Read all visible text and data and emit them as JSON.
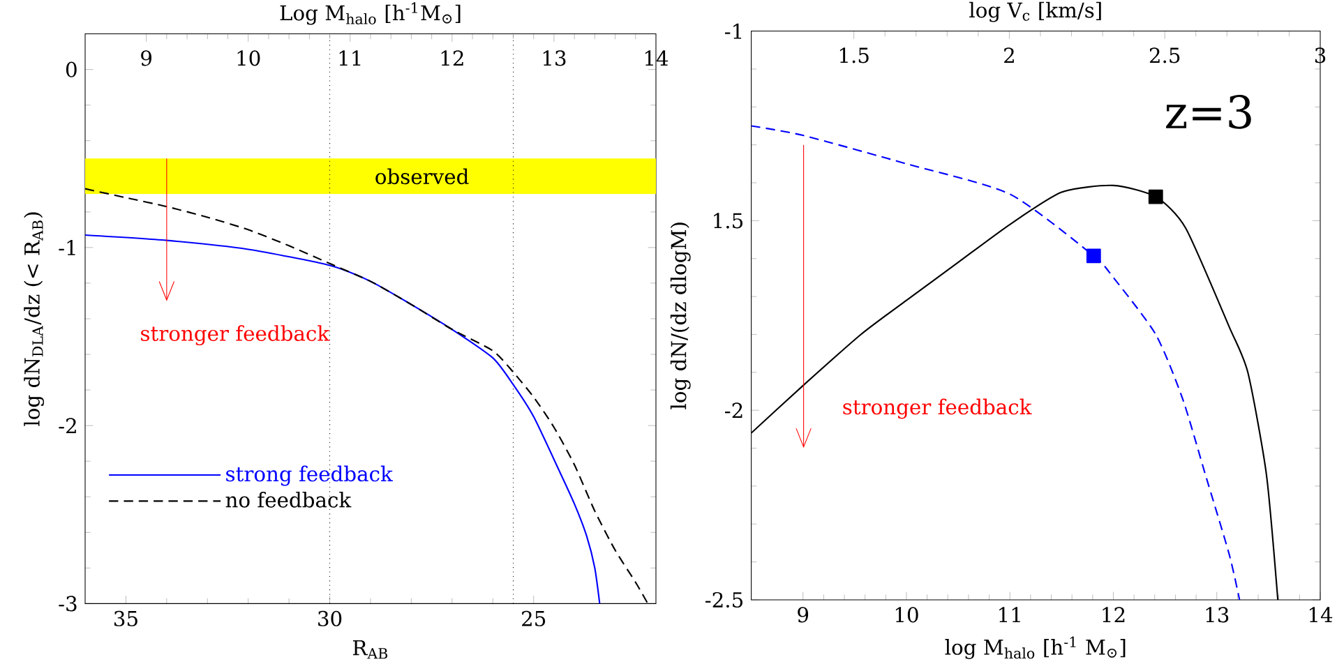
{
  "chart_data": [
    {
      "type": "line",
      "xlabel": "R$_{AB}$",
      "ylabel": "log dN$_{DLA}$/dz (< R$_{AB}$)",
      "x2label": "Log M$_{halo}$ [h$^{-1}$M$_{⊙}$]",
      "xlim": [
        36,
        22
      ],
      "xticks": [
        35,
        30,
        25
      ],
      "ylim": [
        -3,
        0.2
      ],
      "yticks": [
        0,
        -1,
        -2,
        -3
      ],
      "x2lim": [
        8.4,
        14
      ],
      "x2ticks": [
        9,
        10,
        11,
        12,
        13,
        14
      ],
      "legend": "bottom left",
      "series": [
        {
          "name": "strong feedback",
          "color": "#0000ff",
          "line_style": "solid",
          "x": [
            36,
            34,
            32,
            30,
            29,
            28,
            27,
            26,
            25.5,
            25,
            24.38,
            24,
            23.7,
            23.5,
            23.38
          ],
          "values": [
            -0.93,
            -0.96,
            -1.01,
            -1.1,
            -1.19,
            -1.32,
            -1.46,
            -1.62,
            -1.77,
            -1.95,
            -2.25,
            -2.44,
            -2.62,
            -2.8,
            -3.0
          ]
        },
        {
          "name": "no feedback",
          "color": "#000000",
          "line_style": "dashed",
          "x": [
            36,
            35,
            34,
            33,
            32,
            31,
            30,
            29,
            28,
            27,
            26,
            25.5,
            25,
            24.5,
            24,
            23.5,
            23,
            22.5,
            22.2
          ],
          "values": [
            -0.67,
            -0.72,
            -0.77,
            -0.83,
            -0.9,
            -0.99,
            -1.09,
            -1.19,
            -1.32,
            -1.46,
            -1.58,
            -1.7,
            -1.84,
            -2.01,
            -2.22,
            -2.48,
            -2.7,
            -2.88,
            -3.0
          ]
        }
      ],
      "bands": [
        {
          "axis": "y",
          "from": -0.7,
          "to": -0.5,
          "label": "observed",
          "color": "#ffff00"
        }
      ],
      "ref_lines": [
        {
          "axis": "x",
          "value": 30,
          "color": "#000000",
          "line_style": "dotted"
        },
        {
          "axis": "x",
          "value": 25.5,
          "color": "#000000",
          "line_style": "dotted"
        }
      ],
      "annotations": [
        {
          "text": "stronger feedback",
          "x": 34,
          "y": -0.5
        }
      ]
    },
    {
      "type": "line",
      "xlabel": "log M$_{halo}$ [h$^{-1}$ M$_{⊙}$]",
      "ylabel": "log dN/(dz dlogM)",
      "x2label": "log V$_{c}$ [km/s]",
      "xlim": [
        8.5,
        14
      ],
      "xticks": [
        9,
        10,
        11,
        12,
        13,
        14
      ],
      "ylim": [
        -2.5,
        -1
      ],
      "yticks": [
        -1,
        {
          "value": -1.5,
          "label": "1.5"
        },
        -2,
        -2.5
      ],
      "x2lim": [
        1.17,
        3
      ],
      "x2ticks": [
        1.5,
        2,
        2.5,
        3
      ],
      "series": [
        {
          "color": "#0000ff",
          "line_style": "dashed",
          "x": [
            8.5,
            9,
            10,
            11,
            11.81,
            12,
            12.41,
            12.67,
            12.89,
            13.12,
            13.22
          ],
          "values": [
            -1.25,
            -1.275,
            -1.35,
            -1.43,
            -1.593,
            -1.65,
            -1.8,
            -1.97,
            -2.17,
            -2.38,
            -2.5
          ]
        },
        {
          "color": "#000000",
          "line_style": "solid",
          "x": [
            8.5,
            9,
            9.56,
            10,
            10.5,
            11,
            11.5,
            12,
            12.41,
            12.7,
            13.12,
            13.3,
            13.48,
            13.59
          ],
          "values": [
            -2.06,
            -1.935,
            -1.8,
            -1.71,
            -1.61,
            -1.51,
            -1.425,
            -1.407,
            -1.437,
            -1.52,
            -1.78,
            -1.9,
            -2.17,
            -2.5
          ]
        },
        {
          "type": "scatter",
          "marker": "square",
          "color": "#0000ff",
          "x": [
            11.81
          ],
          "values": [
            -1.593
          ]
        },
        {
          "type": "scatter",
          "marker": "square",
          "color": "#000000",
          "x": [
            12.41
          ],
          "values": [
            -1.437
          ]
        }
      ],
      "annotations": [
        "stronger feedback",
        "z=3"
      ]
    }
  ]
}
